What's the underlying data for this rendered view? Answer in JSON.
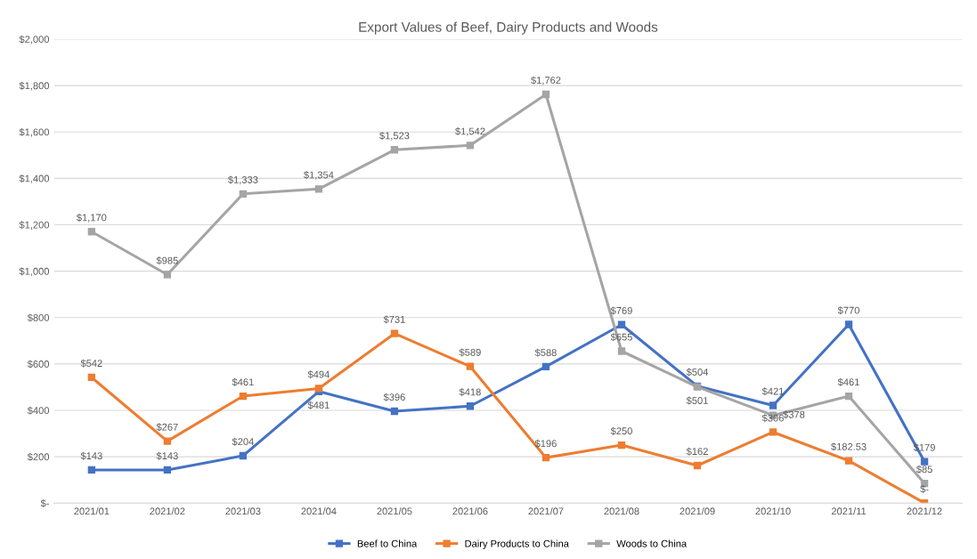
{
  "chart_data": {
    "type": "line",
    "title": "Export Values of Beef, Dairy Products and Woods",
    "categories": [
      "2021/01",
      "2021/02",
      "2021/03",
      "2021/04",
      "2021/05",
      "2021/06",
      "2021/07",
      "2021/08",
      "2021/09",
      "2021/10",
      "2021/11",
      "2021/12"
    ],
    "series": [
      {
        "name": "Beef to China",
        "color": "#4472c4",
        "values": [
          143,
          143,
          204,
          481,
          396,
          418,
          588,
          769,
          504,
          421,
          770,
          179
        ],
        "value_labels": [
          "$143",
          "$143",
          "$204",
          "$481",
          "$396",
          "$418",
          "$588",
          "$769",
          "$504",
          "$421",
          "$770",
          "$179"
        ]
      },
      {
        "name": "Dairy Products to China",
        "color": "#ed7d31",
        "values": [
          542,
          267,
          461,
          494,
          731,
          589,
          196,
          250,
          162,
          306,
          182.53,
          0
        ],
        "value_labels": [
          "$542",
          "$267",
          "$461",
          "$494",
          "$731",
          "$589",
          "$196",
          "$250",
          "$162",
          "$306",
          "$182.53",
          "$-"
        ]
      },
      {
        "name": "Woods to China",
        "color": "#a5a5a5",
        "values": [
          1170,
          985,
          1333,
          1354,
          1523,
          1542,
          1762,
          655,
          501,
          378,
          461,
          85
        ],
        "value_labels": [
          "$1,170",
          "$985",
          "$1,333",
          "$1,354",
          "$1,523",
          "$1,542",
          "$1,762",
          "$655",
          "$501",
          "$378",
          "$461",
          "$85"
        ]
      }
    ],
    "ylim": [
      0,
      2000
    ],
    "yticks": [
      {
        "value": 0,
        "label": "$-"
      },
      {
        "value": 200,
        "label": "$200"
      },
      {
        "value": 400,
        "label": "$400"
      },
      {
        "value": 600,
        "label": "$600"
      },
      {
        "value": 800,
        "label": "$800"
      },
      {
        "value": 1000,
        "label": "$1,000"
      },
      {
        "value": 1200,
        "label": "$1,200"
      },
      {
        "value": 1400,
        "label": "$1,400"
      },
      {
        "value": 1600,
        "label": "$1,600"
      },
      {
        "value": 1800,
        "label": "$1,800"
      },
      {
        "value": 2000,
        "label": "$2,000"
      }
    ],
    "grid": "y",
    "legend": "bottom",
    "marker": "square",
    "line_style": "solid"
  }
}
